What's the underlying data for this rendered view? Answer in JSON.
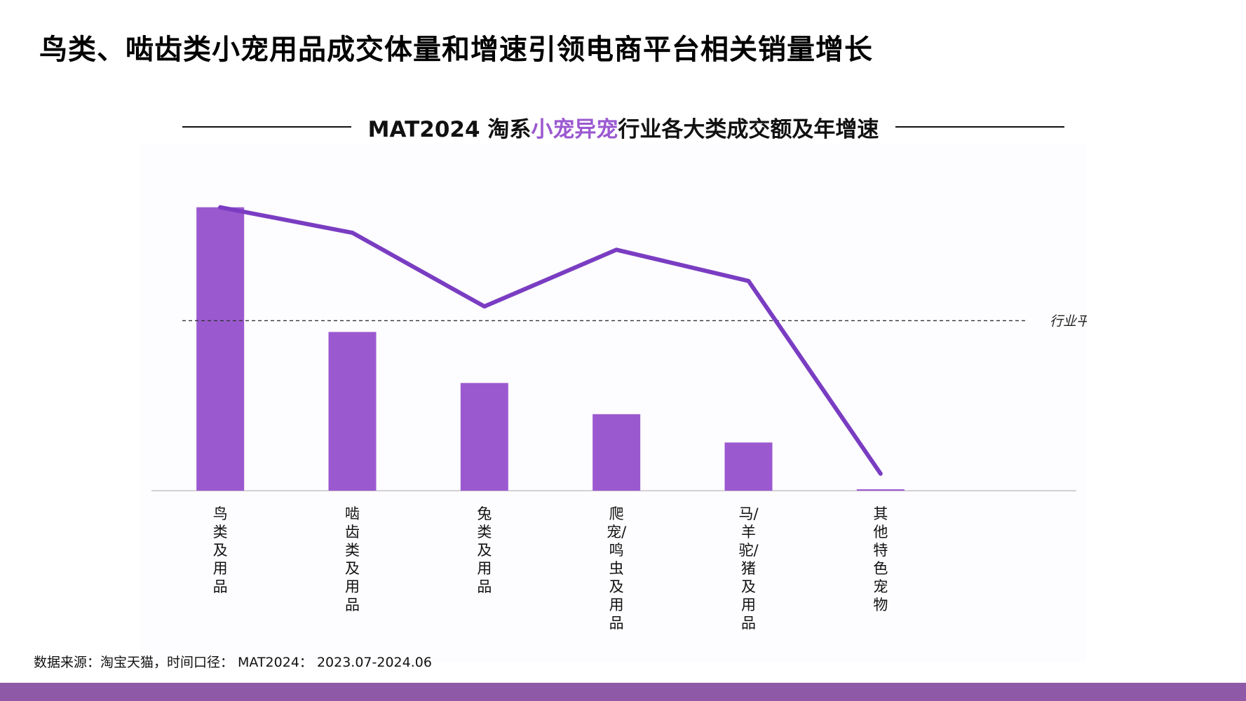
{
  "page": {
    "title": "鸟类、啮齿类小宠用品成交体量和增速引领电商平台相关销量增长",
    "source": "数据来源：淘宝天猫，时间口径： MAT2024： 2023.07-2024.06"
  },
  "chart_data": {
    "type": "bar",
    "title_parts": [
      "MAT2024 淘系",
      "小宠异宠",
      "行业各大类成交额及年增速"
    ],
    "categories": [
      "鸟类及用品",
      "啮齿类及用品",
      "兔类及用品",
      "爬宠/鸣虫及用品",
      "马/羊驼/猪及用品",
      "其他特色宠物"
    ],
    "bar_values": [
      100,
      56,
      38,
      27,
      17,
      0.5
    ],
    "line_values": [
      100,
      91,
      65,
      85,
      74,
      6
    ],
    "reference_line": {
      "label": "行业平均增长率",
      "value": 60,
      "style": "dashed"
    },
    "ylim": [
      0,
      115
    ],
    "colors": {
      "bar": "#9b59d0",
      "line": "#7a3dc2",
      "reference": "#333333",
      "highlight": "#9b59d0"
    },
    "notes": "No numeric axis is printed; values are relative estimates read from bar heights and line positions."
  }
}
